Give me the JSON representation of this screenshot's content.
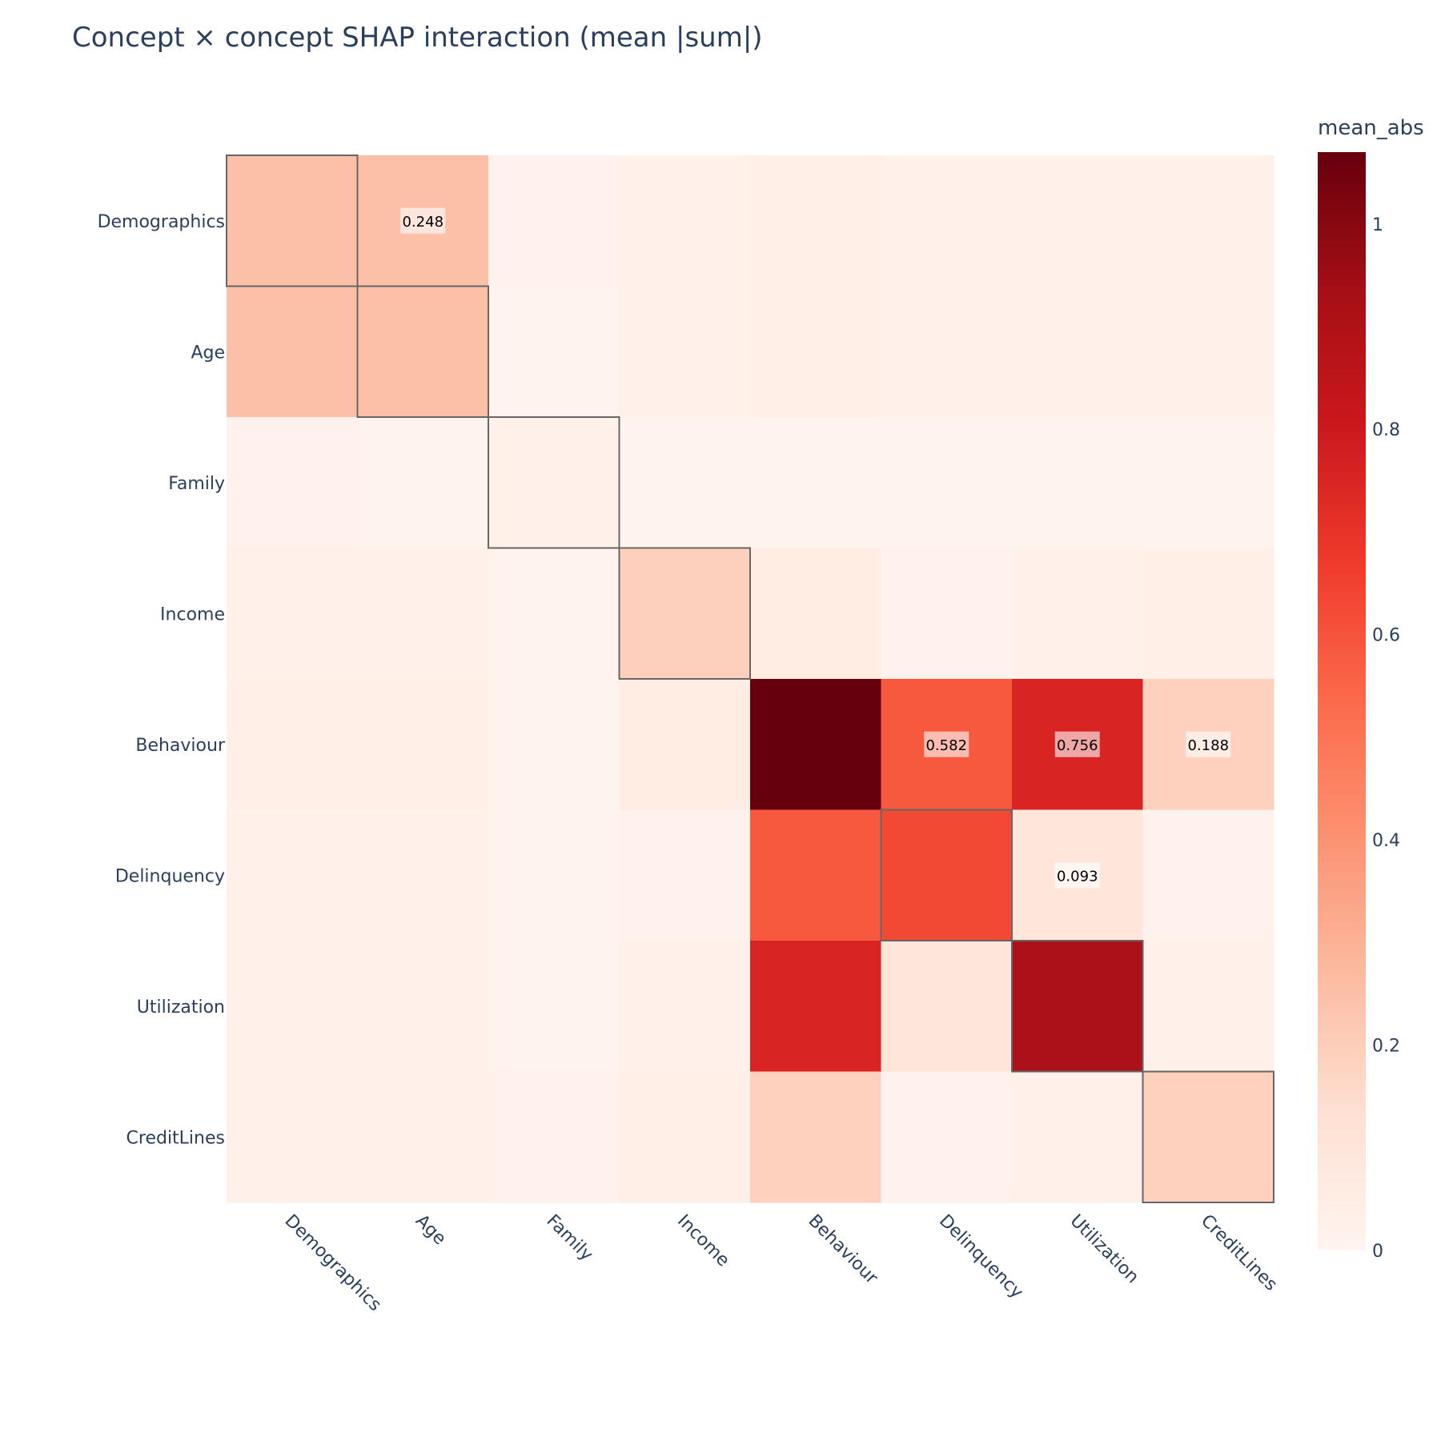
{
  "chart_data": {
    "type": "heatmap",
    "title": "Concept × concept SHAP interaction (mean |sum|)",
    "xlabel": "",
    "ylabel": "",
    "x": [
      "Demographics",
      "Age",
      "Family",
      "Income",
      "Behaviour",
      "Delinquency",
      "Utilization",
      "CreditLines"
    ],
    "y": [
      "Demographics",
      "Age",
      "Family",
      "Income",
      "Behaviour",
      "Delinquency",
      "Utilization",
      "CreditLines"
    ],
    "z": [
      [
        0.248,
        0.248,
        0.02,
        0.03,
        0.04,
        0.03,
        0.03,
        0.03
      ],
      [
        0.248,
        0.248,
        0.012,
        0.03,
        0.04,
        0.03,
        0.03,
        0.03
      ],
      [
        0.02,
        0.012,
        0.03,
        0.015,
        0.015,
        0.015,
        0.015,
        0.015
      ],
      [
        0.03,
        0.03,
        0.015,
        0.19,
        0.06,
        0.02,
        0.03,
        0.04
      ],
      [
        0.04,
        0.04,
        0.015,
        0.06,
        1.07,
        0.582,
        0.756,
        0.188
      ],
      [
        0.03,
        0.03,
        0.015,
        0.02,
        0.582,
        0.63,
        0.093,
        0.02
      ],
      [
        0.03,
        0.03,
        0.015,
        0.03,
        0.756,
        0.093,
        0.91,
        0.03
      ],
      [
        0.03,
        0.03,
        0.02,
        0.04,
        0.188,
        0.02,
        0.03,
        0.188
      ]
    ],
    "annotations": [
      {
        "row": "Demographics",
        "col": "Age",
        "text": "0.248"
      },
      {
        "row": "Behaviour",
        "col": "Delinquency",
        "text": "0.582"
      },
      {
        "row": "Behaviour",
        "col": "Utilization",
        "text": "0.756"
      },
      {
        "row": "Behaviour",
        "col": "CreditLines",
        "text": "0.188"
      },
      {
        "row": "Delinquency",
        "col": "Utilization",
        "text": "0.093"
      }
    ],
    "highlighted_cells": [
      {
        "row": "Demographics",
        "col": "Demographics"
      },
      {
        "row": "Age",
        "col": "Age"
      },
      {
        "row": "Family",
        "col": "Family"
      },
      {
        "row": "Income",
        "col": "Income"
      },
      {
        "row": "Delinquency",
        "col": "Delinquency"
      },
      {
        "row": "Utilization",
        "col": "Utilization"
      },
      {
        "row": "CreditLines",
        "col": "CreditLines"
      }
    ],
    "colorbar": {
      "title": "mean_abs",
      "range": [
        0,
        1.07
      ],
      "ticks": [
        0,
        0.2,
        0.4,
        0.6,
        0.8,
        1
      ],
      "tick_labels": [
        "0",
        "0.2",
        "0.4",
        "0.6",
        "0.8",
        "1"
      ]
    },
    "colorscale": "Reds",
    "colors": {
      "scale_stops": [
        "#fff5f0",
        "#fee0d2",
        "#fcbba1",
        "#fc9272",
        "#fb6a4a",
        "#ef3b2c",
        "#cb181d",
        "#a50f15",
        "#67000d"
      ],
      "text": "#2a3f5f",
      "highlight_border": "#666666"
    }
  }
}
